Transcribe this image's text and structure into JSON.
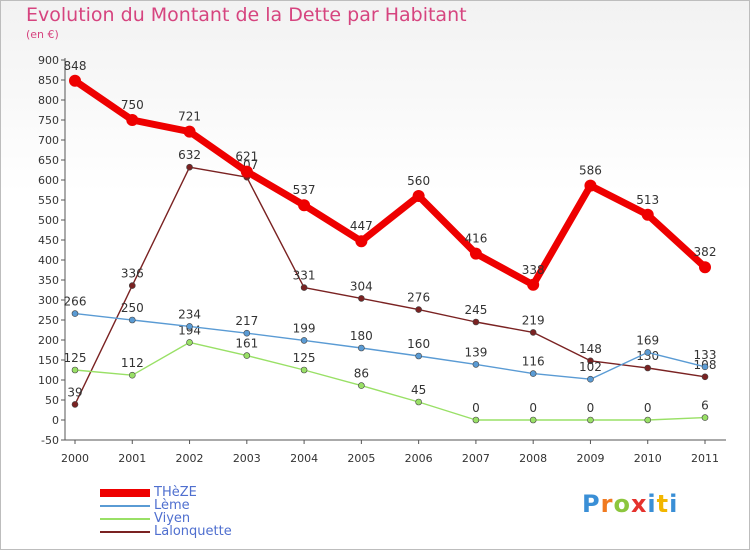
{
  "title": "Evolution du Montant de la Dette par Habitant",
  "subtitle": "(en €)",
  "logo": {
    "chars": [
      "P",
      "r",
      "o",
      "x",
      "i",
      "t",
      "i"
    ]
  },
  "chart_data": {
    "type": "line",
    "x": [
      "2000",
      "2001",
      "2002",
      "2003",
      "2004",
      "2005",
      "2006",
      "2007",
      "2008",
      "2009",
      "2010",
      "2011"
    ],
    "ylim": [
      -50,
      900
    ],
    "yticks": [
      -50,
      0,
      50,
      100,
      150,
      200,
      250,
      300,
      350,
      400,
      450,
      500,
      550,
      600,
      650,
      700,
      750,
      800,
      850,
      900
    ],
    "grid": false,
    "legend_position": "bottom-left",
    "series": [
      {
        "name": "THèZE",
        "color": "#ee0000",
        "values": [
          848,
          750,
          721,
          621,
          537,
          447,
          560,
          416,
          338,
          586,
          513,
          382
        ]
      },
      {
        "name": "Lème",
        "color": "#5a9bd4",
        "values": [
          266,
          250,
          234,
          217,
          199,
          180,
          160,
          139,
          116,
          102,
          169,
          133
        ]
      },
      {
        "name": "Viyen",
        "color": "#99e066",
        "values": [
          125,
          112,
          194,
          161,
          125,
          86,
          45,
          0,
          0,
          0,
          0,
          6
        ]
      },
      {
        "name": "Lalonquette",
        "color": "#7a2222",
        "values": [
          39,
          336,
          632,
          607,
          331,
          304,
          276,
          245,
          219,
          148,
          130,
          108
        ]
      }
    ]
  }
}
